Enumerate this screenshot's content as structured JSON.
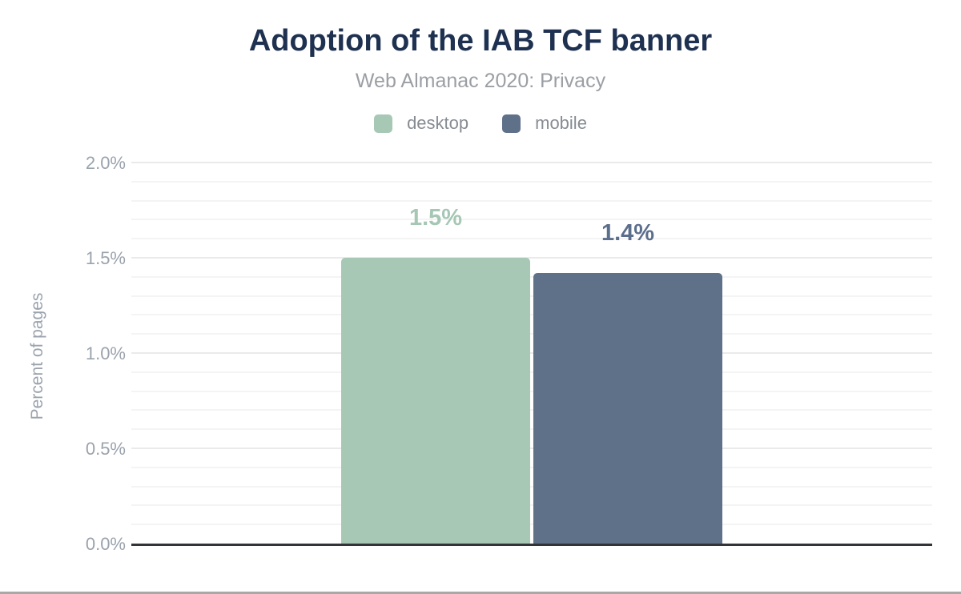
{
  "page": {
    "title": "Adoption of the IAB TCF banner",
    "subtitle": "Web Almanac 2020: Privacy"
  },
  "legend": {
    "items": [
      {
        "label": "desktop",
        "color": "#a7c8b5"
      },
      {
        "label": "mobile",
        "color": "#5f7089"
      }
    ]
  },
  "chart_data": {
    "type": "bar",
    "title": "Adoption of the IAB TCF banner",
    "subtitle": "Web Almanac 2020: Privacy",
    "categories": [
      "desktop",
      "mobile"
    ],
    "values": [
      1.5,
      1.42
    ],
    "value_labels": [
      "1.5%",
      "1.4%"
    ],
    "series_colors": [
      "#a7c8b5",
      "#5f7089"
    ],
    "value_label_colors": [
      "#a5c7b4",
      "#5b6e8c"
    ],
    "ylabel": "Percent of pages",
    "ylim": [
      0,
      2
    ],
    "ytick_values": [
      0,
      0.5,
      1.0,
      1.5,
      2.0
    ],
    "ytick_labels": [
      "0.0%",
      "0.5%",
      "1.0%",
      "1.5%",
      "2.0%"
    ],
    "minor_grid_step": 0.1,
    "grid": "horizontal",
    "legend_position": "top"
  },
  "colors": {
    "title": "#1f3150",
    "subtitle": "#9b9fa4",
    "legend_text": "#878c93",
    "axis_text": "#9ba3ad",
    "axis_line": "#323438",
    "grid_minor": "#f4f4f4",
    "grid_major": "#eaeaea",
    "page_border": "#a8a8a8",
    "background": "#ffffff"
  }
}
